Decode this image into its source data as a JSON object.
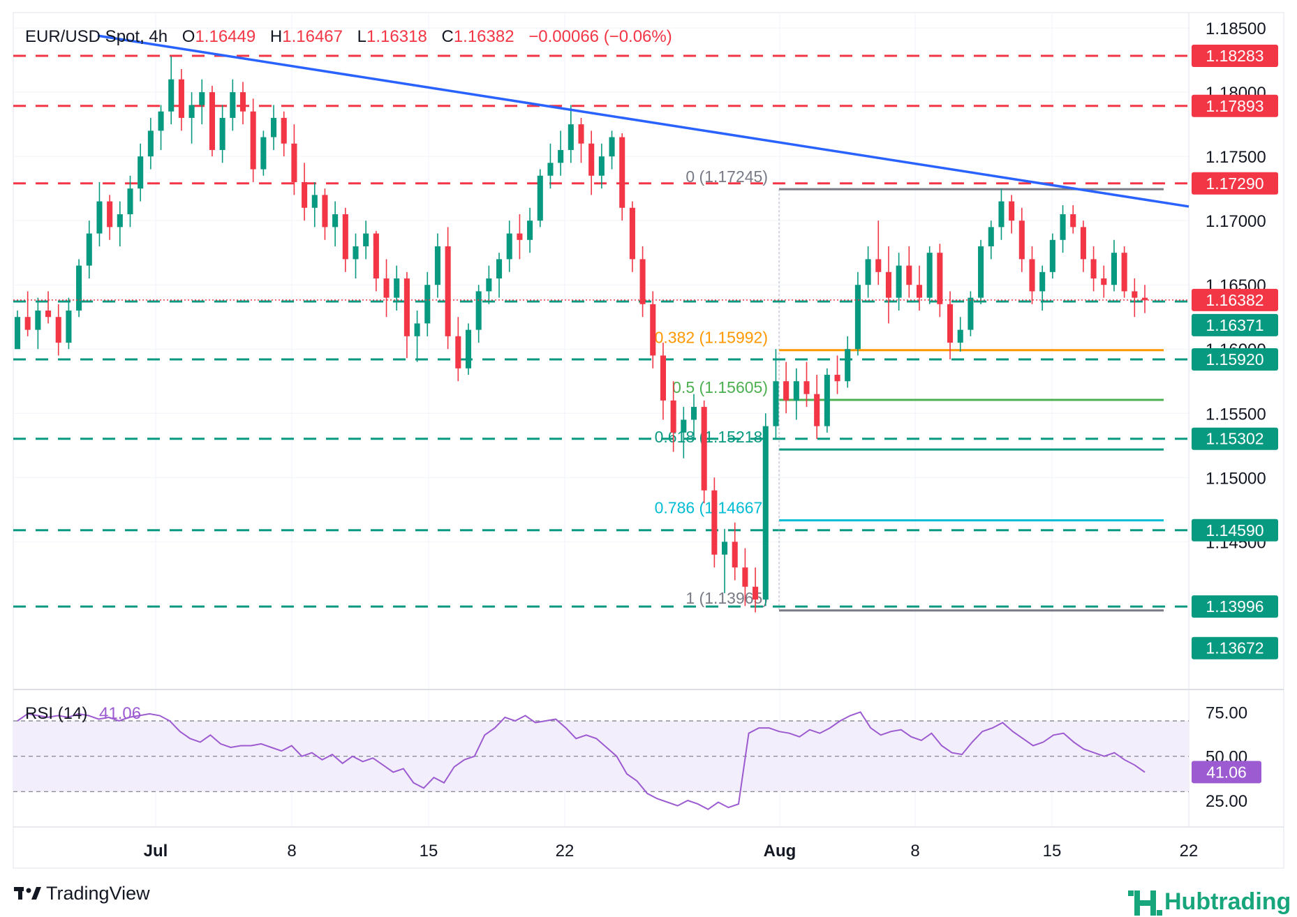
{
  "header": {
    "symbol": "EUR/USD Spot",
    "interval": "4h",
    "o_label": "O",
    "o_value": "1.16449",
    "h_label": "H",
    "h_value": "1.16467",
    "l_label": "L",
    "l_value": "1.16318",
    "c_label": "C",
    "c_value": "1.16382",
    "change": "−0.00066 (−0.06%)"
  },
  "colors": {
    "up": "#089981",
    "down": "#f23645",
    "trendline": "#2962ff",
    "resistance": "#f23645",
    "support": "#089981",
    "fib_0": "#787b86",
    "fib_382": "#ff9800",
    "fib_5": "#4caf50",
    "fib_618": "#089981",
    "fib_786": "#00bcd4",
    "fib_1": "#787b86",
    "rsi": "#9c5bd0",
    "rsi_band": "#f3eefb"
  },
  "chart_data": [
    {
      "type": "candlestick",
      "title": "EUR/USD Spot, 4h",
      "x_ticks": [
        "Jul",
        "8",
        "15",
        "22",
        "Aug",
        "8",
        "15",
        "22"
      ],
      "y_ticks": [
        "1.18500",
        "1.18000",
        "1.17500",
        "1.17000",
        "1.16500",
        "1.16000",
        "1.15500",
        "1.15000",
        "1.14500"
      ],
      "ylim": [
        1.1335,
        1.1862
      ],
      "grid": true,
      "price_path": [
        [
          1.16,
          1.163,
          1.1605,
          1.1625
        ],
        [
          1.1625,
          1.1645,
          1.161,
          1.1615
        ],
        [
          1.1615,
          1.164,
          1.16,
          1.163
        ],
        [
          1.163,
          1.1645,
          1.162,
          1.1625
        ],
        [
          1.1625,
          1.1635,
          1.1595,
          1.1605
        ],
        [
          1.1605,
          1.164,
          1.16,
          1.163
        ],
        [
          1.163,
          1.167,
          1.1625,
          1.1665
        ],
        [
          1.1665,
          1.17,
          1.1655,
          1.169
        ],
        [
          1.169,
          1.173,
          1.168,
          1.1715
        ],
        [
          1.1715,
          1.172,
          1.1685,
          1.1695
        ],
        [
          1.1695,
          1.1715,
          1.168,
          1.1705
        ],
        [
          1.1705,
          1.1735,
          1.1695,
          1.1725
        ],
        [
          1.1725,
          1.176,
          1.1715,
          1.175
        ],
        [
          1.175,
          1.178,
          1.174,
          1.177
        ],
        [
          1.177,
          1.179,
          1.1755,
          1.1785
        ],
        [
          1.1785,
          1.1828,
          1.1775,
          1.181
        ],
        [
          1.181,
          1.1818,
          1.177,
          1.178
        ],
        [
          1.178,
          1.18,
          1.176,
          1.179
        ],
        [
          1.179,
          1.181,
          1.1775,
          1.18
        ],
        [
          1.18,
          1.1805,
          1.175,
          1.1755
        ],
        [
          1.1755,
          1.179,
          1.1745,
          1.178
        ],
        [
          1.178,
          1.181,
          1.177,
          1.18
        ],
        [
          1.18,
          1.1808,
          1.1775,
          1.1785
        ],
        [
          1.1785,
          1.1795,
          1.173,
          1.174
        ],
        [
          1.174,
          1.177,
          1.1735,
          1.1765
        ],
        [
          1.1765,
          1.179,
          1.1755,
          1.178
        ],
        [
          1.178,
          1.1785,
          1.175,
          1.176
        ],
        [
          1.176,
          1.1775,
          1.172,
          1.173
        ],
        [
          1.173,
          1.1745,
          1.17,
          1.171
        ],
        [
          1.171,
          1.173,
          1.1695,
          1.172
        ],
        [
          1.172,
          1.1725,
          1.1685,
          1.1695
        ],
        [
          1.1695,
          1.1715,
          1.168,
          1.1705
        ],
        [
          1.1705,
          1.171,
          1.166,
          1.167
        ],
        [
          1.167,
          1.169,
          1.1655,
          1.168
        ],
        [
          1.168,
          1.17,
          1.167,
          1.169
        ],
        [
          1.169,
          1.1692,
          1.1645,
          1.1655
        ],
        [
          1.1655,
          1.167,
          1.1625,
          1.164
        ],
        [
          1.164,
          1.1665,
          1.163,
          1.1655
        ],
        [
          1.1655,
          1.166,
          1.1593,
          1.161
        ],
        [
          1.161,
          1.163,
          1.159,
          1.162
        ],
        [
          1.162,
          1.166,
          1.161,
          1.165
        ],
        [
          1.165,
          1.169,
          1.164,
          1.168
        ],
        [
          1.168,
          1.1695,
          1.16,
          1.161
        ],
        [
          1.161,
          1.1625,
          1.1575,
          1.1585
        ],
        [
          1.1585,
          1.162,
          1.158,
          1.1615
        ],
        [
          1.1615,
          1.165,
          1.1605,
          1.1645
        ],
        [
          1.1645,
          1.1665,
          1.1635,
          1.1655
        ],
        [
          1.1655,
          1.1675,
          1.164,
          1.167
        ],
        [
          1.167,
          1.17,
          1.166,
          1.169
        ],
        [
          1.169,
          1.1705,
          1.167,
          1.1685
        ],
        [
          1.1685,
          1.171,
          1.1675,
          1.17
        ],
        [
          1.17,
          1.174,
          1.1695,
          1.1735
        ],
        [
          1.1735,
          1.176,
          1.1725,
          1.1745
        ],
        [
          1.1745,
          1.177,
          1.1735,
          1.1755
        ],
        [
          1.1755,
          1.179,
          1.1745,
          1.1775
        ],
        [
          1.1775,
          1.178,
          1.1745,
          1.176
        ],
        [
          1.176,
          1.177,
          1.172,
          1.1735
        ],
        [
          1.1735,
          1.176,
          1.1725,
          1.175
        ],
        [
          1.175,
          1.177,
          1.174,
          1.1765
        ],
        [
          1.1765,
          1.1768,
          1.17,
          1.171
        ],
        [
          1.171,
          1.1715,
          1.166,
          1.167
        ],
        [
          1.167,
          1.168,
          1.1625,
          1.1635
        ],
        [
          1.1635,
          1.1645,
          1.1585,
          1.1595
        ],
        [
          1.1595,
          1.1605,
          1.1545,
          1.156
        ],
        [
          1.156,
          1.1575,
          1.152,
          1.1535
        ],
        [
          1.1535,
          1.1555,
          1.1515,
          1.1545
        ],
        [
          1.1545,
          1.1565,
          1.153,
          1.1555
        ],
        [
          1.1555,
          1.156,
          1.148,
          1.149
        ],
        [
          1.149,
          1.15,
          1.143,
          1.144
        ],
        [
          1.144,
          1.146,
          1.141,
          1.145
        ],
        [
          1.145,
          1.1465,
          1.142,
          1.143
        ],
        [
          1.143,
          1.1445,
          1.14,
          1.1415
        ],
        [
          1.1415,
          1.143,
          1.1395,
          1.1405
        ],
        [
          1.1405,
          1.155,
          1.14,
          1.154
        ],
        [
          1.154,
          1.16,
          1.153,
          1.1575
        ],
        [
          1.1575,
          1.159,
          1.155,
          1.156
        ],
        [
          1.156,
          1.1585,
          1.1545,
          1.1575
        ],
        [
          1.1575,
          1.159,
          1.1555,
          1.1565
        ],
        [
          1.1565,
          1.158,
          1.153,
          1.154
        ],
        [
          1.154,
          1.1585,
          1.1535,
          1.158
        ],
        [
          1.158,
          1.1595,
          1.1565,
          1.1575
        ],
        [
          1.1575,
          1.161,
          1.157,
          1.16
        ],
        [
          1.16,
          1.166,
          1.1595,
          1.165
        ],
        [
          1.165,
          1.168,
          1.164,
          1.167
        ],
        [
          1.167,
          1.17,
          1.165,
          1.166
        ],
        [
          1.166,
          1.168,
          1.162,
          1.164
        ],
        [
          1.164,
          1.1675,
          1.163,
          1.1665
        ],
        [
          1.1665,
          1.168,
          1.164,
          1.165
        ],
        [
          1.165,
          1.1665,
          1.163,
          1.164
        ],
        [
          1.164,
          1.168,
          1.1635,
          1.1675
        ],
        [
          1.1675,
          1.1682,
          1.1625,
          1.1635
        ],
        [
          1.1635,
          1.1645,
          1.1592,
          1.1605
        ],
        [
          1.1605,
          1.1625,
          1.1598,
          1.1615
        ],
        [
          1.1615,
          1.1645,
          1.161,
          1.164
        ],
        [
          1.164,
          1.1685,
          1.1635,
          1.168
        ],
        [
          1.168,
          1.17,
          1.167,
          1.1695
        ],
        [
          1.1695,
          1.1725,
          1.1685,
          1.1715
        ],
        [
          1.1715,
          1.172,
          1.169,
          1.17
        ],
        [
          1.17,
          1.171,
          1.166,
          1.167
        ],
        [
          1.167,
          1.168,
          1.1635,
          1.1645
        ],
        [
          1.1645,
          1.1665,
          1.163,
          1.166
        ],
        [
          1.166,
          1.169,
          1.1655,
          1.1685
        ],
        [
          1.1685,
          1.1712,
          1.1675,
          1.1705
        ],
        [
          1.1705,
          1.1712,
          1.169,
          1.1695
        ],
        [
          1.1695,
          1.17,
          1.166,
          1.167
        ],
        [
          1.167,
          1.168,
          1.1645,
          1.1655
        ],
        [
          1.1655,
          1.1665,
          1.164,
          1.165
        ],
        [
          1.165,
          1.1685,
          1.1645,
          1.1675
        ],
        [
          1.1675,
          1.168,
          1.164,
          1.1645
        ],
        [
          1.1645,
          1.1655,
          1.1625,
          1.164
        ],
        [
          1.164,
          1.165,
          1.1628,
          1.1638
        ]
      ],
      "horizontal_levels": [
        {
          "label": "1.18283",
          "value": 1.18283,
          "kind": "resistance"
        },
        {
          "label": "1.17893",
          "value": 1.17893,
          "kind": "resistance"
        },
        {
          "label": "1.17290",
          "value": 1.1729,
          "kind": "resistance"
        },
        {
          "label": "1.16371",
          "value": 1.16371,
          "kind": "support"
        },
        {
          "label": "1.15920",
          "value": 1.1592,
          "kind": "support"
        },
        {
          "label": "1.15302",
          "value": 1.15302,
          "kind": "support"
        },
        {
          "label": "1.14590",
          "value": 1.1459,
          "kind": "support"
        },
        {
          "label": "1.13996",
          "value": 1.13996,
          "kind": "support"
        },
        {
          "label": "1.13672",
          "value": 1.13672,
          "kind": "support"
        }
      ],
      "last_price": {
        "label": "1.16382",
        "value": 1.16382
      },
      "fibonacci": [
        {
          "label": "0 (1.17245)",
          "value": 1.17245,
          "color_key": "fib_0"
        },
        {
          "label": "0.382 (1.15992)",
          "value": 1.15992,
          "color_key": "fib_382"
        },
        {
          "label": "0.5 (1.15605)",
          "value": 1.15605,
          "color_key": "fib_5"
        },
        {
          "label": "0.618 (1.15218)",
          "value": 1.15218,
          "color_key": "fib_618"
        },
        {
          "label": "0.786 (1.14667)",
          "value": 1.14667,
          "color_key": "fib_786"
        },
        {
          "label": "1 (1.13965)",
          "value": 1.13965,
          "color_key": "fib_1"
        }
      ],
      "trendline": {
        "from": 1.1844,
        "to": 1.1711
      }
    },
    {
      "type": "line",
      "title": "RSI (14)",
      "current": "41.06",
      "y_ticks": [
        "75.00",
        "50.00",
        "25.00"
      ],
      "ylim": [
        10,
        85
      ],
      "band": [
        30,
        70
      ],
      "midline": 50,
      "values": [
        70,
        74,
        73,
        72,
        73,
        72,
        74,
        73,
        71,
        72,
        70,
        72,
        73,
        74,
        73,
        70,
        64,
        60,
        58,
        62,
        57,
        55,
        56,
        56,
        57,
        55,
        53,
        56,
        50,
        52,
        48,
        51,
        46,
        50,
        47,
        49,
        45,
        41,
        43,
        35,
        32,
        38,
        35,
        44,
        48,
        50,
        62,
        66,
        72,
        70,
        73,
        69,
        70,
        71,
        66,
        60,
        62,
        60,
        55,
        50,
        40,
        36,
        29,
        26,
        24,
        22,
        25,
        23,
        20,
        24,
        21,
        23,
        63,
        66,
        66,
        64,
        63,
        61,
        65,
        63,
        66,
        70,
        73,
        75,
        66,
        62,
        64,
        65,
        61,
        59,
        63,
        56,
        52,
        51,
        58,
        64,
        66,
        69,
        64,
        60,
        56,
        58,
        62,
        63,
        58,
        54,
        52,
        50,
        52,
        48,
        45,
        41
      ]
    }
  ],
  "footer": {
    "brand": "TradingView",
    "watermark_brand": "Hubtrading"
  }
}
